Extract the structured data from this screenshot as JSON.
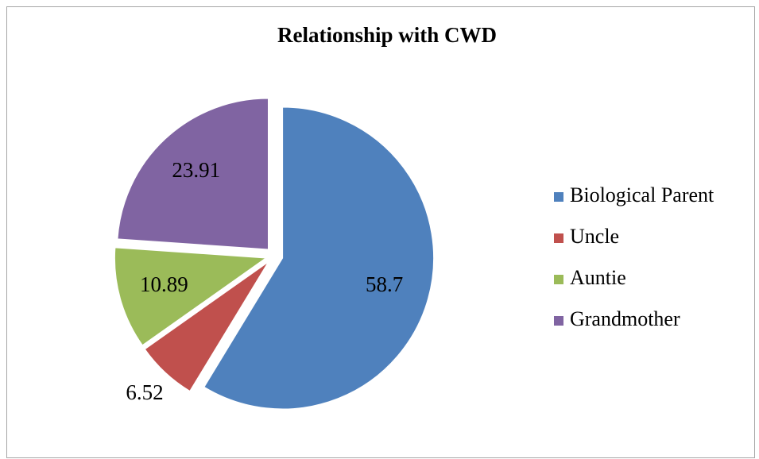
{
  "chart_data": {
    "type": "pie",
    "title": "Relationship  with CWD",
    "categories": [
      "Biological Parent",
      "Uncle",
      "Auntie",
      "Grandmother"
    ],
    "values": [
      58.7,
      6.52,
      10.89,
      23.91
    ],
    "colors": [
      "#4f81bd",
      "#c0504d",
      "#9bbb59",
      "#8064a2"
    ],
    "legend": "right",
    "exploded": true
  }
}
